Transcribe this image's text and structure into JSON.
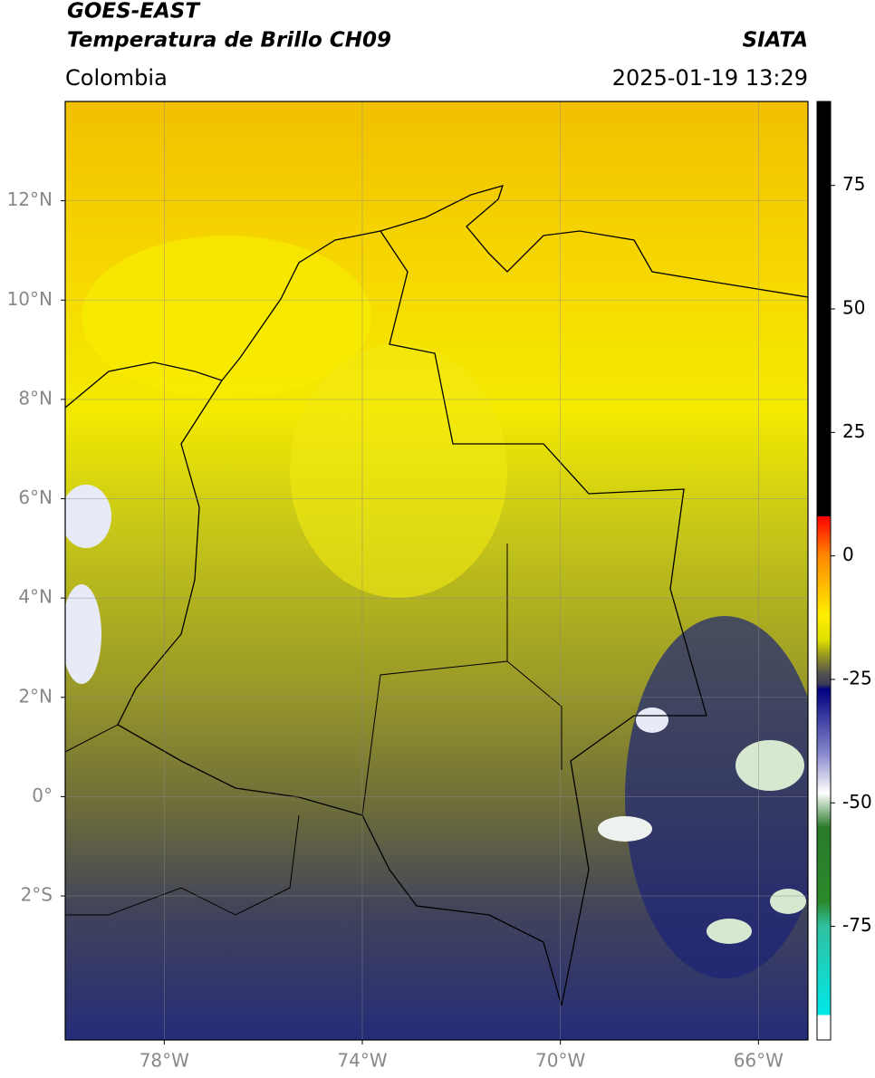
{
  "header": {
    "title": "GOES-EAST",
    "subtitle": "Temperatura de Brillo CH09",
    "source": "SIATA",
    "region": "Colombia",
    "timestamp": "2025-01-19 13:29"
  },
  "map": {
    "lon_range": [
      -80,
      -65
    ],
    "lat_range": [
      -4.9,
      14
    ],
    "grid": true,
    "lon_ticks": [
      {
        "value": -78,
        "label": "78°W"
      },
      {
        "value": -74,
        "label": "74°W"
      },
      {
        "value": -70,
        "label": "70°W"
      },
      {
        "value": -66,
        "label": "66°W"
      }
    ],
    "lat_ticks": [
      {
        "value": 12,
        "label": "12°N"
      },
      {
        "value": 10,
        "label": "10°N"
      },
      {
        "value": 8,
        "label": "8°N"
      },
      {
        "value": 6,
        "label": "6°N"
      },
      {
        "value": 4,
        "label": "4°N"
      },
      {
        "value": 2,
        "label": "2°N"
      },
      {
        "value": 0,
        "label": "0°"
      },
      {
        "value": -2,
        "label": "2°S"
      }
    ]
  },
  "colorbar": {
    "range": [
      -98,
      92
    ],
    "ticks": [
      75,
      50,
      25,
      0,
      -25,
      -50,
      -75
    ],
    "colormap": [
      {
        "value": 92,
        "color": "#000000"
      },
      {
        "value": 8,
        "color": "#000000"
      },
      {
        "value": 8,
        "color": "#ff0000"
      },
      {
        "value": 0,
        "color": "#ff8800"
      },
      {
        "value": -12,
        "color": "#ffee00"
      },
      {
        "value": -17,
        "color": "#e0e000"
      },
      {
        "value": -20,
        "color": "#9a9a20"
      },
      {
        "value": -24,
        "color": "#505050"
      },
      {
        "value": -26,
        "color": "#3a3a55"
      },
      {
        "value": -27,
        "color": "#000080"
      },
      {
        "value": -40,
        "color": "#8888cc"
      },
      {
        "value": -48,
        "color": "#ffffff"
      },
      {
        "value": -55,
        "color": "#2a7a2a"
      },
      {
        "value": -70,
        "color": "#2a8a2a"
      },
      {
        "value": -75,
        "color": "#30c0a0"
      },
      {
        "value": -93,
        "color": "#00e8e8"
      },
      {
        "value": -93,
        "color": "#ffffff"
      },
      {
        "value": -98,
        "color": "#ffffff"
      }
    ]
  }
}
